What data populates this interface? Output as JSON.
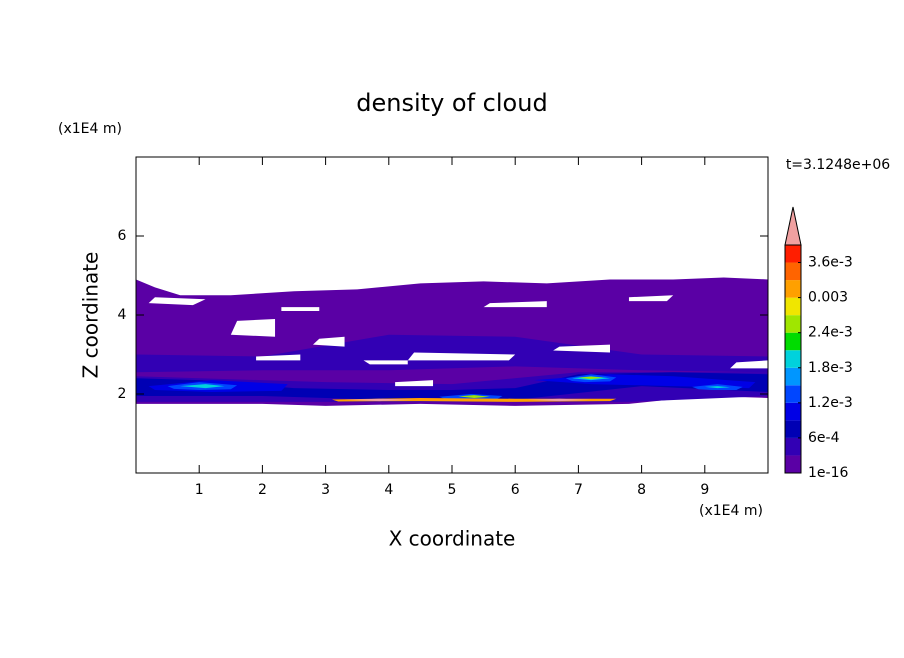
{
  "chart_data": {
    "type": "contour",
    "title": "density of cloud",
    "xlabel": "X coordinate",
    "ylabel": "Z coordinate",
    "xunit": "(x1E4 m)",
    "yunit": "(x1E4 m)",
    "annotation": "t=3.1248e+06",
    "xlim": [
      0,
      10
    ],
    "ylim": [
      0,
      8
    ],
    "xticks": [
      1,
      2,
      3,
      4,
      5,
      6,
      7,
      8,
      9
    ],
    "yticks": [
      2,
      4,
      6
    ],
    "levels": [
      1e-16,
      0.0003,
      0.0006,
      0.0009,
      0.0012,
      0.0015,
      0.0018,
      0.0021,
      0.0024,
      0.0027,
      0.003,
      0.0033,
      0.0036
    ],
    "colors": [
      "#5a00a5",
      "#3200b4",
      "#0000b4",
      "#0000e6",
      "#0046ff",
      "#0096ff",
      "#00d2dc",
      "#00dc00",
      "#a0e600",
      "#f0e600",
      "#ffa000",
      "#ff6400",
      "#ff1e00"
    ],
    "over_color": "#f0a0a0",
    "under_color": "#ffffff",
    "colorbar_lim": [
      1e-16,
      0.0039
    ],
    "colorbar_ticks": [
      {
        "value": 1e-16,
        "label": "1e-16"
      },
      {
        "value": 0.0006,
        "label": "6e-4"
      },
      {
        "value": 0.0012,
        "label": "1.2e-3"
      },
      {
        "value": 0.0018,
        "label": "1.8e-3"
      },
      {
        "value": 0.0024,
        "label": "2.4e-3"
      },
      0.003,
      {
        "value": 0.0036,
        "label": "3.6e-3"
      }
    ],
    "regions": [
      {
        "level": 1e-16,
        "x": [
          0,
          0,
          0.3,
          0.7,
          1.5,
          2.5,
          3.5,
          4.5,
          5.5,
          6.5,
          7.5,
          8.5,
          9.3,
          10,
          10,
          9,
          7.8,
          6,
          4.5,
          3,
          2,
          0
        ],
        "z": [
          1.75,
          4.9,
          4.7,
          4.5,
          4.5,
          4.6,
          4.65,
          4.8,
          4.85,
          4.8,
          4.9,
          4.9,
          4.95,
          4.9,
          1.9,
          1.95,
          1.75,
          1.7,
          1.75,
          1.7,
          1.75,
          1.75
        ]
      },
      {
        "level": 0.0003,
        "x": [
          0,
          2,
          4,
          6,
          8,
          10,
          10,
          8,
          6,
          4,
          2,
          0
        ],
        "z": [
          3.0,
          2.95,
          3.5,
          3.45,
          3.0,
          2.95,
          2.55,
          2.6,
          2.7,
          2.6,
          2.6,
          2.55
        ]
      },
      {
        "level": 0.0003,
        "x": [
          0,
          3,
          5,
          7,
          10,
          10,
          7.8,
          5,
          3,
          0
        ],
        "z": [
          2.45,
          2.3,
          2.25,
          2.55,
          2.55,
          1.95,
          1.8,
          1.8,
          1.8,
          1.8
        ]
      },
      {
        "level": 0.0006,
        "x": [
          0,
          1,
          2.5,
          4,
          5,
          6,
          7,
          8.5,
          10,
          10,
          8,
          6,
          4,
          2,
          0
        ],
        "z": [
          2.4,
          2.35,
          2.15,
          2.1,
          2.1,
          2.15,
          2.5,
          2.55,
          2.5,
          2.05,
          2.2,
          1.85,
          1.85,
          1.95,
          1.95
        ]
      },
      {
        "level": 0.0009,
        "x": [
          0.2,
          1.2,
          2.4,
          2.3,
          1.2,
          0.3
        ],
        "z": [
          2.2,
          2.35,
          2.25,
          2.08,
          2.05,
          2.1
        ]
      },
      {
        "level": 0.0009,
        "x": [
          6.3,
          7.5,
          8.5,
          9.8,
          9.7,
          8.5,
          7.2
        ],
        "z": [
          2.35,
          2.5,
          2.45,
          2.3,
          2.15,
          2.2,
          2.25
        ]
      },
      {
        "level": 0.0012,
        "x": [
          0.5,
          1.0,
          1.6,
          1.5,
          1.0,
          0.6
        ],
        "z": [
          2.2,
          2.3,
          2.22,
          2.12,
          2.1,
          2.13
        ]
      },
      {
        "level": 0.0012,
        "x": [
          6.8,
          7.2,
          7.6,
          7.5,
          7.1,
          6.9
        ],
        "z": [
          2.4,
          2.5,
          2.42,
          2.32,
          2.3,
          2.33
        ]
      },
      {
        "level": 0.0012,
        "x": [
          8.8,
          9.2,
          9.6,
          9.5,
          9.1,
          8.9
        ],
        "z": [
          2.18,
          2.25,
          2.18,
          2.1,
          2.1,
          2.12
        ]
      },
      {
        "level": 0.0012,
        "x": [
          4.8,
          5.3,
          5.8,
          5.7,
          5.2,
          4.9
        ],
        "z": [
          1.93,
          2.0,
          1.95,
          1.86,
          1.85,
          1.87
        ]
      },
      {
        "level": 0.0018,
        "x": [
          0.7,
          1.1,
          1.4,
          1.1
        ],
        "z": [
          2.2,
          2.25,
          2.2,
          2.15
        ]
      },
      {
        "level": 0.0018,
        "x": [
          6.9,
          7.2,
          7.5,
          7.2
        ],
        "z": [
          2.4,
          2.45,
          2.4,
          2.35
        ]
      },
      {
        "level": 0.0018,
        "x": [
          9.0,
          9.2,
          9.4,
          9.2
        ],
        "z": [
          2.18,
          2.2,
          2.17,
          2.15
        ]
      },
      {
        "level": 0.0024,
        "x": [
          7.0,
          7.2,
          7.4,
          7.2
        ],
        "z": [
          2.41,
          2.44,
          2.41,
          2.38
        ]
      },
      {
        "level": 0.0024,
        "x": [
          5.1,
          5.35,
          5.6,
          5.35
        ],
        "z": [
          1.94,
          1.97,
          1.93,
          1.9
        ]
      },
      {
        "level": 0.003,
        "x": [
          3.1,
          4.5,
          6,
          7.6,
          7.5,
          6,
          4.5,
          3.2
        ],
        "z": [
          1.86,
          1.9,
          1.88,
          1.88,
          1.82,
          1.8,
          1.82,
          1.81
        ]
      },
      {
        "level": 0.0039,
        "x": [
          3.3,
          3.85,
          4.4,
          3.85
        ],
        "z": [
          1.85,
          1.88,
          1.85,
          1.82
        ]
      },
      {
        "level": 0.0039,
        "x": [
          6.2,
          6.7,
          7.2,
          6.7
        ],
        "z": [
          1.85,
          1.88,
          1.85,
          1.82
        ]
      },
      {
        "level": 0,
        "x": [
          1.5,
          2.2,
          2.2,
          1.6
        ],
        "z": [
          3.5,
          3.45,
          3.9,
          3.85
        ]
      },
      {
        "level": 0,
        "x": [
          0.2,
          0.9,
          1.1,
          0.3
        ],
        "z": [
          4.3,
          4.25,
          4.4,
          4.45
        ]
      },
      {
        "level": 0,
        "x": [
          2.8,
          3.3,
          3.3,
          2.9
        ],
        "z": [
          3.25,
          3.2,
          3.45,
          3.4
        ]
      },
      {
        "level": 0,
        "x": [
          4.3,
          5.9,
          6.0,
          4.4
        ],
        "z": [
          2.85,
          2.85,
          3.0,
          3.05
        ]
      },
      {
        "level": 0,
        "x": [
          3.7,
          4.3,
          4.3,
          3.6
        ],
        "z": [
          2.75,
          2.75,
          2.85,
          2.85
        ]
      },
      {
        "level": 0,
        "x": [
          6.6,
          7.5,
          7.5,
          6.7
        ],
        "z": [
          3.1,
          3.05,
          3.25,
          3.2
        ]
      },
      {
        "level": 0,
        "x": [
          5.5,
          6.5,
          6.5,
          5.6
        ],
        "z": [
          4.2,
          4.2,
          4.35,
          4.3
        ]
      },
      {
        "level": 0,
        "x": [
          7.8,
          8.4,
          8.5,
          7.8
        ],
        "z": [
          4.35,
          4.35,
          4.5,
          4.45
        ]
      },
      {
        "level": 0,
        "x": [
          4.1,
          4.7,
          4.7,
          4.1
        ],
        "z": [
          2.2,
          2.2,
          2.35,
          2.3
        ]
      },
      {
        "level": 0,
        "x": [
          1.9,
          2.6,
          2.6,
          1.9
        ],
        "z": [
          2.85,
          2.85,
          3.0,
          2.95
        ]
      },
      {
        "level": 0,
        "x": [
          9.4,
          10,
          10,
          9.5
        ],
        "z": [
          2.65,
          2.65,
          2.85,
          2.8
        ]
      },
      {
        "level": 0,
        "x": [
          2.3,
          2.9,
          2.9,
          2.3
        ],
        "z": [
          4.1,
          4.1,
          4.2,
          4.2
        ]
      }
    ]
  }
}
